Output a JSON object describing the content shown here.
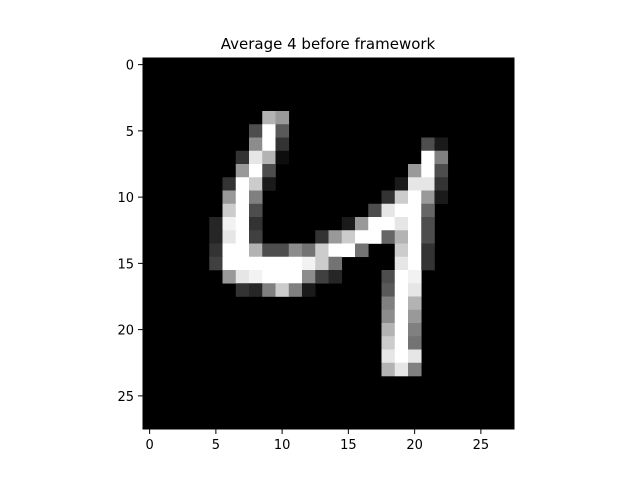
{
  "chart_data": {
    "type": "heatmap",
    "title": "Average 4 before framework",
    "xlabel": "",
    "ylabel": "",
    "colormap": "gray",
    "value_range": [
      0,
      1
    ],
    "xlim": [
      -0.5,
      27.5
    ],
    "ylim": [
      27.5,
      -0.5
    ],
    "x_ticks": [
      0,
      5,
      10,
      15,
      20,
      25
    ],
    "y_ticks": [
      0,
      5,
      10,
      15,
      20,
      25
    ],
    "grid": false,
    "rows": 28,
    "cols": 28,
    "pixels": [
      [
        4,
        9,
        0.7
      ],
      [
        4,
        10,
        0.6
      ],
      [
        5,
        8,
        0.3
      ],
      [
        5,
        9,
        1.0
      ],
      [
        5,
        10,
        0.35
      ],
      [
        6,
        8,
        0.55
      ],
      [
        6,
        9,
        1.0
      ],
      [
        6,
        10,
        0.2
      ],
      [
        6,
        21,
        0.3
      ],
      [
        6,
        22,
        0.1
      ],
      [
        7,
        7,
        0.2
      ],
      [
        7,
        8,
        0.9
      ],
      [
        7,
        9,
        0.7
      ],
      [
        7,
        10,
        0.05
      ],
      [
        7,
        21,
        1.0
      ],
      [
        7,
        22,
        0.5
      ],
      [
        8,
        7,
        0.6
      ],
      [
        8,
        8,
        1.0
      ],
      [
        8,
        9,
        0.3
      ],
      [
        8,
        20,
        0.6
      ],
      [
        8,
        21,
        1.0
      ],
      [
        8,
        22,
        0.3
      ],
      [
        9,
        6,
        0.2
      ],
      [
        9,
        7,
        1.0
      ],
      [
        9,
        8,
        0.8
      ],
      [
        9,
        9,
        0.1
      ],
      [
        9,
        19,
        0.1
      ],
      [
        9,
        20,
        0.9
      ],
      [
        9,
        21,
        0.9
      ],
      [
        9,
        22,
        0.2
      ],
      [
        10,
        6,
        0.6
      ],
      [
        10,
        7,
        1.0
      ],
      [
        10,
        8,
        0.5
      ],
      [
        10,
        18,
        0.2
      ],
      [
        10,
        19,
        0.8
      ],
      [
        10,
        20,
        1.0
      ],
      [
        10,
        21,
        0.6
      ],
      [
        10,
        22,
        0.1
      ],
      [
        11,
        6,
        0.8
      ],
      [
        11,
        7,
        1.0
      ],
      [
        11,
        8,
        0.3
      ],
      [
        11,
        17,
        0.3
      ],
      [
        11,
        18,
        0.9
      ],
      [
        11,
        19,
        1.0
      ],
      [
        11,
        20,
        1.0
      ],
      [
        11,
        21,
        0.4
      ],
      [
        12,
        5,
        0.15
      ],
      [
        12,
        6,
        0.95
      ],
      [
        12,
        7,
        1.0
      ],
      [
        12,
        8,
        0.2
      ],
      [
        12,
        15,
        0.1
      ],
      [
        12,
        16,
        0.6
      ],
      [
        12,
        17,
        1.0
      ],
      [
        12,
        18,
        1.0
      ],
      [
        12,
        19,
        0.9
      ],
      [
        12,
        20,
        1.0
      ],
      [
        12,
        21,
        0.3
      ],
      [
        13,
        5,
        0.15
      ],
      [
        13,
        6,
        0.9
      ],
      [
        13,
        7,
        1.0
      ],
      [
        13,
        8,
        0.25
      ],
      [
        13,
        13,
        0.2
      ],
      [
        13,
        14,
        0.6
      ],
      [
        13,
        15,
        0.8
      ],
      [
        13,
        16,
        1.0
      ],
      [
        13,
        17,
        1.0
      ],
      [
        13,
        18,
        0.4
      ],
      [
        13,
        19,
        0.7
      ],
      [
        13,
        20,
        1.0
      ],
      [
        13,
        21,
        0.3
      ],
      [
        14,
        5,
        0.2
      ],
      [
        14,
        6,
        1.0
      ],
      [
        14,
        7,
        1.0
      ],
      [
        14,
        8,
        0.7
      ],
      [
        14,
        9,
        0.3
      ],
      [
        14,
        10,
        0.3
      ],
      [
        14,
        11,
        0.55
      ],
      [
        14,
        12,
        0.45
      ],
      [
        14,
        13,
        0.8
      ],
      [
        14,
        14,
        1.0
      ],
      [
        14,
        15,
        1.0
      ],
      [
        14,
        16,
        0.45
      ],
      [
        14,
        19,
        0.8
      ],
      [
        14,
        20,
        1.0
      ],
      [
        14,
        21,
        0.2
      ],
      [
        15,
        5,
        0.25
      ],
      [
        15,
        6,
        1.0
      ],
      [
        15,
        7,
        1.0
      ],
      [
        15,
        8,
        1.0
      ],
      [
        15,
        9,
        1.0
      ],
      [
        15,
        10,
        1.0
      ],
      [
        15,
        11,
        1.0
      ],
      [
        15,
        12,
        0.95
      ],
      [
        15,
        13,
        0.8
      ],
      [
        15,
        14,
        0.45
      ],
      [
        15,
        19,
        0.9
      ],
      [
        15,
        20,
        1.0
      ],
      [
        15,
        21,
        0.2
      ],
      [
        16,
        6,
        0.6
      ],
      [
        16,
        7,
        0.9
      ],
      [
        16,
        8,
        0.95
      ],
      [
        16,
        9,
        1.0
      ],
      [
        16,
        10,
        1.0
      ],
      [
        16,
        11,
        1.0
      ],
      [
        16,
        12,
        0.55
      ],
      [
        16,
        13,
        0.25
      ],
      [
        16,
        14,
        0.15
      ],
      [
        16,
        18,
        0.3
      ],
      [
        16,
        19,
        1.0
      ],
      [
        16,
        20,
        0.95
      ],
      [
        17,
        7,
        0.2
      ],
      [
        17,
        8,
        0.15
      ],
      [
        17,
        9,
        0.5
      ],
      [
        17,
        10,
        0.8
      ],
      [
        17,
        11,
        0.5
      ],
      [
        17,
        12,
        0.1
      ],
      [
        17,
        18,
        0.35
      ],
      [
        17,
        19,
        1.0
      ],
      [
        17,
        20,
        0.9
      ],
      [
        18,
        18,
        0.5
      ],
      [
        18,
        19,
        1.0
      ],
      [
        18,
        20,
        0.7
      ],
      [
        19,
        18,
        0.55
      ],
      [
        19,
        19,
        1.0
      ],
      [
        19,
        20,
        0.6
      ],
      [
        20,
        18,
        0.7
      ],
      [
        20,
        19,
        1.0
      ],
      [
        20,
        20,
        0.5
      ],
      [
        21,
        18,
        0.8
      ],
      [
        21,
        19,
        1.0
      ],
      [
        21,
        20,
        0.45
      ],
      [
        22,
        18,
        0.9
      ],
      [
        22,
        19,
        1.0
      ],
      [
        22,
        20,
        0.9
      ],
      [
        23,
        18,
        0.7
      ],
      [
        23,
        19,
        0.9
      ],
      [
        23,
        20,
        0.5
      ]
    ]
  }
}
